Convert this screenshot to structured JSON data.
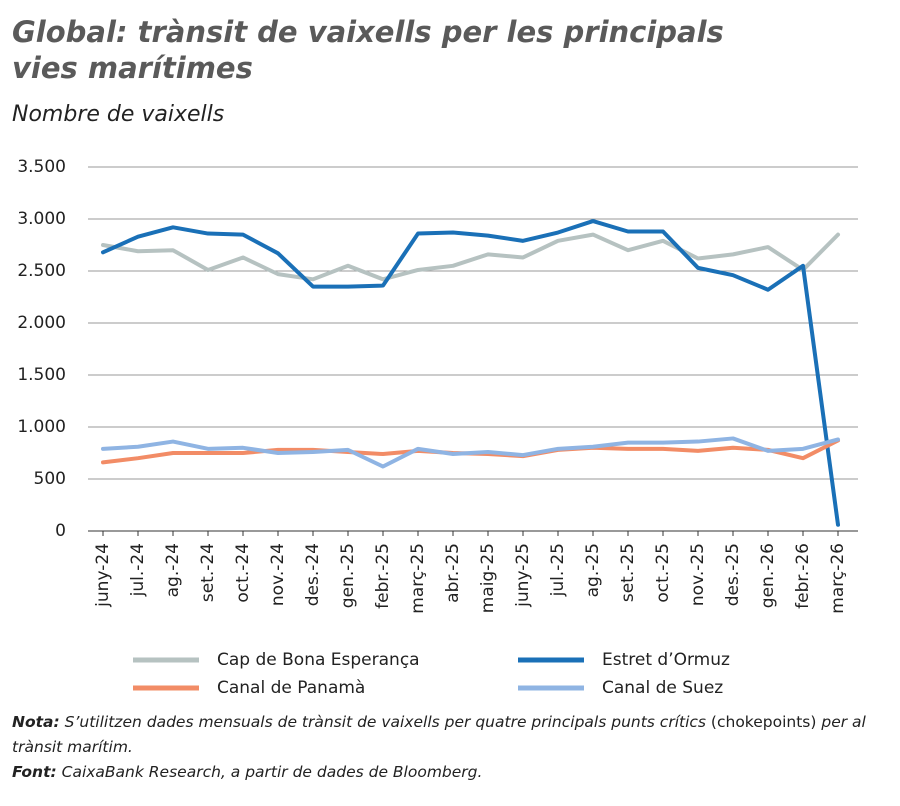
{
  "chart_data": {
    "type": "line",
    "title": "Global: trànsit de vaixells per les principals vies marítimes",
    "subtitle": "Nombre de vaixells",
    "categories": [
      "juny-24",
      "jul.-24",
      "ag.-24",
      "set.-24",
      "oct.-24",
      "nov.-24",
      "des.-24",
      "gen.-25",
      "febr.-25",
      "març-25",
      "abr.-25",
      "maig-25",
      "juny-25",
      "jul.-25",
      "ag.-25",
      "set.-25",
      "oct.-25",
      "nov.-25",
      "des.-25",
      "gen.-26",
      "febr.-26",
      "març-26"
    ],
    "series": [
      {
        "name": "Cap de Bona Esperança",
        "color": "#b6c2c1",
        "values": [
          2750,
          2690,
          2700,
          2510,
          2630,
          2470,
          2420,
          2550,
          2420,
          2510,
          2550,
          2660,
          2630,
          2790,
          2850,
          2700,
          2790,
          2620,
          2660,
          2730,
          2510,
          2850
        ]
      },
      {
        "name": "Estret d’Ormuz",
        "color": "#1a70b7",
        "values": [
          2680,
          2830,
          2920,
          2860,
          2850,
          2670,
          2350,
          2350,
          2360,
          2860,
          2870,
          2840,
          2790,
          2870,
          2980,
          2880,
          2880,
          2530,
          2460,
          2320,
          2550,
          60
        ]
      },
      {
        "name": "Canal de Panamà",
        "color": "#f28c66",
        "values": [
          660,
          700,
          750,
          750,
          750,
          780,
          780,
          760,
          740,
          770,
          750,
          740,
          720,
          780,
          800,
          790,
          790,
          770,
          800,
          780,
          700,
          870
        ]
      },
      {
        "name": "Canal de Suez",
        "color": "#8fb4e3",
        "values": [
          790,
          810,
          860,
          790,
          800,
          750,
          760,
          780,
          620,
          790,
          740,
          760,
          730,
          790,
          810,
          850,
          850,
          860,
          890,
          770,
          790,
          880
        ]
      }
    ],
    "ylim": [
      0,
      3500
    ],
    "yticks": [
      0,
      500,
      {
        "value": 1000,
        "label": "1.000"
      },
      {
        "value": 1500,
        "label": "1.500"
      },
      {
        "value": 2000,
        "label": "2.000"
      },
      {
        "value": 2500,
        "label": "2.500"
      },
      {
        "value": 3000,
        "label": "3.000"
      },
      {
        "value": 3500,
        "label": "3.500"
      }
    ],
    "grid": true,
    "note": {
      "label": "Nota:",
      "text": "S’utilitzen dades mensuals de trànsit de vaixells per quatre principals punts crítics",
      "term": "(chokepoints)",
      "text_end": "per al trànsit marítim."
    },
    "source": {
      "label": "Font:",
      "text": "CaixaBank Research, a partir de dades de Bloomberg."
    }
  }
}
